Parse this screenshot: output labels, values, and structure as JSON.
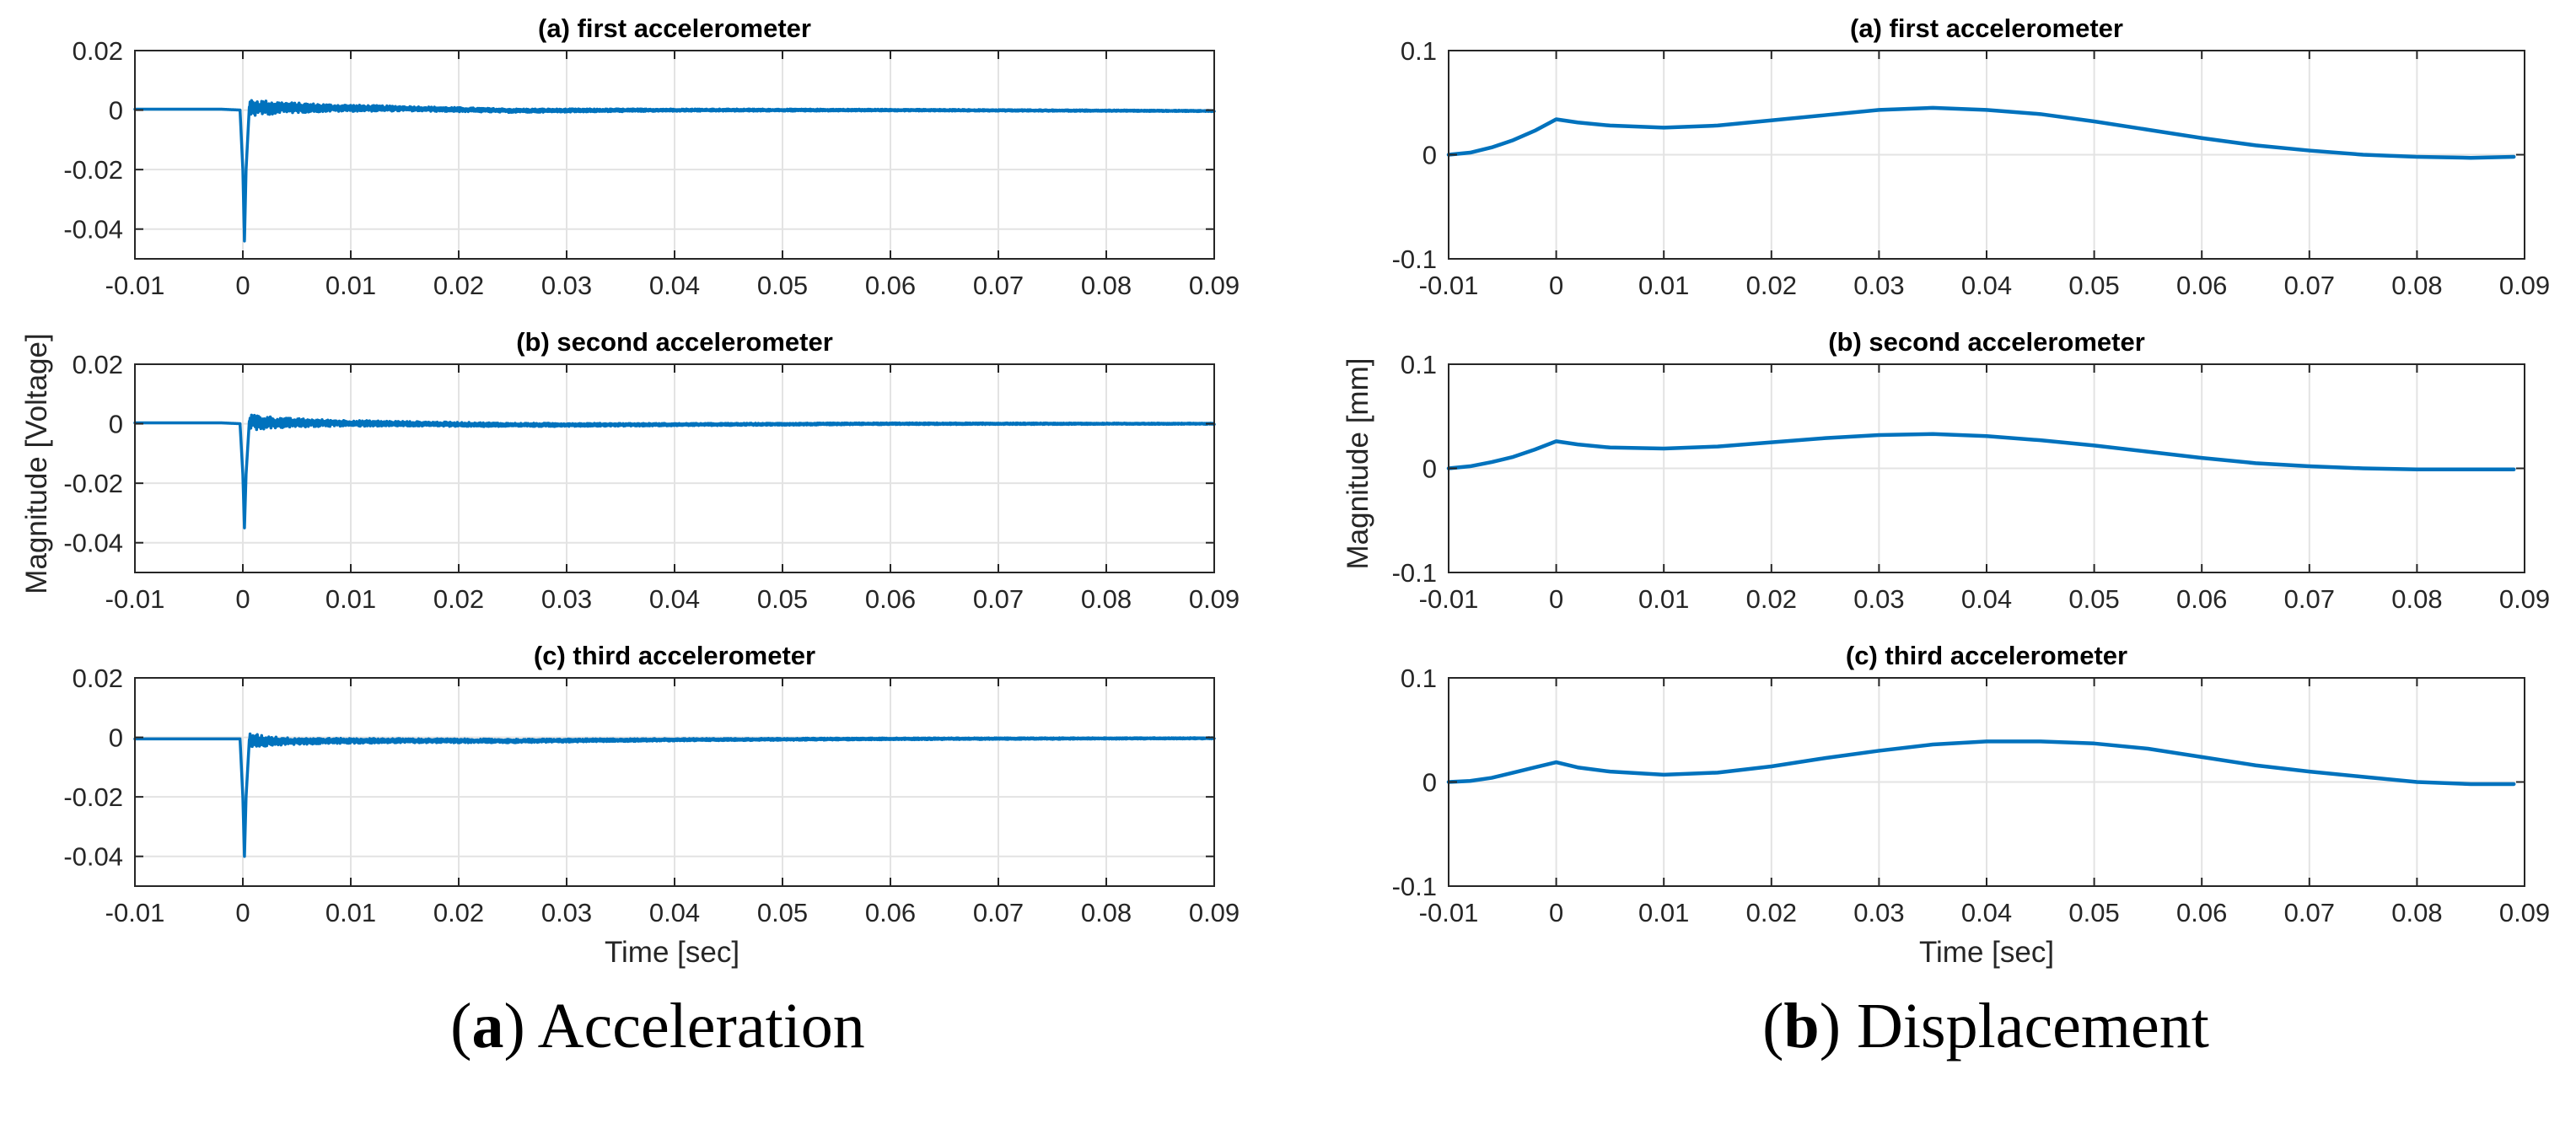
{
  "chart_data": [
    {
      "type": "line",
      "panel": "acceleration",
      "title": "(a) first accelerometer",
      "xlabel": "",
      "ylabel": "",
      "xlim": [
        -0.01,
        0.09
      ],
      "ylim": [
        -0.05,
        0.02
      ],
      "xticks": [
        -0.01,
        0,
        0.01,
        0.02,
        0.03,
        0.04,
        0.05,
        0.06,
        0.07,
        0.08,
        0.09
      ],
      "xtick_labels": [
        "-0.01",
        "0",
        "0.01",
        "0.02",
        "0.03",
        "0.04",
        "0.05",
        "0.06",
        "0.07",
        "0.08",
        "0.09"
      ],
      "yticks": [
        0.02,
        0,
        -0.02,
        -0.04
      ],
      "ytick_labels": [
        "0.02",
        "0",
        "-0.02",
        "-0.04"
      ],
      "grid": true,
      "series": [
        {
          "name": "first accelerometer",
          "color": "#0072BD",
          "x": [
            -0.01,
            -0.002,
            -0.0002,
            0.0,
            0.00015,
            0.0003,
            0.0006,
            0.001,
            0.002,
            0.004,
            0.008,
            0.015,
            0.025,
            0.04,
            0.06,
            0.09
          ],
          "y": [
            0.0003,
            0.0003,
            0.0,
            -0.02,
            -0.044,
            -0.02,
            0.001,
            0.0008,
            0.0008,
            0.0008,
            0.0007,
            0.0005,
            -0.0002,
            0.0,
            0.0,
            -0.0003
          ],
          "noise_amplitude": [
            0,
            0,
            0,
            0,
            0,
            0,
            0.0025,
            0.0028,
            0.0024,
            0.0018,
            0.0012,
            0.0008,
            0.0006,
            0.0004,
            0.0003,
            0.0002
          ]
        }
      ]
    },
    {
      "type": "line",
      "panel": "acceleration",
      "title": "(b) second accelerometer",
      "xlabel": "",
      "ylabel": "Magnitude [Voltage]",
      "xlim": [
        -0.01,
        0.09
      ],
      "ylim": [
        -0.05,
        0.02
      ],
      "xticks": [
        -0.01,
        0,
        0.01,
        0.02,
        0.03,
        0.04,
        0.05,
        0.06,
        0.07,
        0.08,
        0.09
      ],
      "xtick_labels": [
        "-0.01",
        "0",
        "0.01",
        "0.02",
        "0.03",
        "0.04",
        "0.05",
        "0.06",
        "0.07",
        "0.08",
        "0.09"
      ],
      "yticks": [
        0.02,
        0,
        -0.02,
        -0.04
      ],
      "ytick_labels": [
        "0.02",
        "0",
        "-0.02",
        "-0.04"
      ],
      "grid": true,
      "series": [
        {
          "name": "second accelerometer",
          "color": "#0072BD",
          "x": [
            -0.01,
            -0.002,
            -0.0002,
            0.0,
            0.00015,
            0.0003,
            0.0006,
            0.001,
            0.002,
            0.004,
            0.008,
            0.015,
            0.025,
            0.04,
            0.06,
            0.09
          ],
          "y": [
            0.0003,
            0.0003,
            0.0,
            -0.017,
            -0.035,
            -0.017,
            0.0008,
            0.0005,
            0.0004,
            0.0003,
            0.0002,
            0.0,
            -0.0004,
            -0.0003,
            0.0,
            0.0
          ],
          "noise_amplitude": [
            0,
            0,
            0,
            0,
            0,
            0,
            0.0025,
            0.0026,
            0.0022,
            0.0016,
            0.0011,
            0.0008,
            0.0006,
            0.0004,
            0.0003,
            0.0002
          ]
        }
      ]
    },
    {
      "type": "line",
      "panel": "acceleration",
      "title": "(c) third accelerometer",
      "xlabel": "Time [sec]",
      "ylabel": "",
      "xlim": [
        -0.01,
        0.09
      ],
      "ylim": [
        -0.05,
        0.02
      ],
      "xticks": [
        -0.01,
        0,
        0.01,
        0.02,
        0.03,
        0.04,
        0.05,
        0.06,
        0.07,
        0.08,
        0.09
      ],
      "xtick_labels": [
        "-0.01",
        "0",
        "0.01",
        "0.02",
        "0.03",
        "0.04",
        "0.05",
        "0.06",
        "0.07",
        "0.08",
        "0.09"
      ],
      "yticks": [
        0.02,
        0,
        -0.02,
        -0.04
      ],
      "ytick_labels": [
        "0.02",
        "0",
        "-0.02",
        "-0.04"
      ],
      "grid": true,
      "series": [
        {
          "name": "third accelerometer",
          "color": "#0072BD",
          "x": [
            -0.01,
            -0.002,
            -0.0002,
            0.0,
            0.00015,
            0.0003,
            0.0006,
            0.001,
            0.002,
            0.004,
            0.008,
            0.015,
            0.025,
            0.04,
            0.06,
            0.09
          ],
          "y": [
            -0.0005,
            -0.0005,
            -0.0005,
            -0.02,
            -0.04,
            -0.02,
            -0.0008,
            -0.001,
            -0.0012,
            -0.0013,
            -0.0012,
            -0.0011,
            -0.0012,
            -0.0008,
            -0.0005,
            -0.0003
          ],
          "noise_amplitude": [
            0,
            0,
            0,
            0,
            0,
            0,
            0.0022,
            0.0022,
            0.0018,
            0.0012,
            0.0009,
            0.0007,
            0.0006,
            0.0004,
            0.0003,
            0.0002
          ]
        }
      ]
    },
    {
      "type": "line",
      "panel": "displacement",
      "title": "(a) first accelerometer",
      "xlabel": "",
      "ylabel": "",
      "xlim": [
        -0.01,
        0.09
      ],
      "ylim": [
        -0.1,
        0.1
      ],
      "xticks": [
        -0.01,
        0,
        0.01,
        0.02,
        0.03,
        0.04,
        0.05,
        0.06,
        0.07,
        0.08,
        0.09
      ],
      "xtick_labels": [
        "-0.01",
        "0",
        "0.01",
        "0.02",
        "0.03",
        "0.04",
        "0.05",
        "0.06",
        "0.07",
        "0.08",
        "0.09"
      ],
      "yticks": [
        0.1,
        0,
        -0.1
      ],
      "ytick_labels": [
        "0.1",
        "0",
        "-0.1"
      ],
      "grid": true,
      "series": [
        {
          "name": "first accelerometer",
          "color": "#0072BD",
          "x": [
            -0.01,
            -0.008,
            -0.006,
            -0.004,
            -0.002,
            0.0,
            0.002,
            0.005,
            0.01,
            0.015,
            0.02,
            0.025,
            0.03,
            0.035,
            0.04,
            0.045,
            0.05,
            0.055,
            0.06,
            0.065,
            0.07,
            0.075,
            0.08,
            0.085,
            0.089
          ],
          "y": [
            0.0,
            0.002,
            0.007,
            0.014,
            0.023,
            0.034,
            0.031,
            0.028,
            0.026,
            0.028,
            0.033,
            0.038,
            0.043,
            0.045,
            0.043,
            0.039,
            0.032,
            0.024,
            0.016,
            0.009,
            0.004,
            0.0,
            -0.002,
            -0.003,
            -0.002
          ]
        }
      ]
    },
    {
      "type": "line",
      "panel": "displacement",
      "title": "(b) second accelerometer",
      "xlabel": "",
      "ylabel": "Magnitude [mm]",
      "xlim": [
        -0.01,
        0.09
      ],
      "ylim": [
        -0.1,
        0.1
      ],
      "xticks": [
        -0.01,
        0,
        0.01,
        0.02,
        0.03,
        0.04,
        0.05,
        0.06,
        0.07,
        0.08,
        0.09
      ],
      "xtick_labels": [
        "-0.01",
        "0",
        "0.01",
        "0.02",
        "0.03",
        "0.04",
        "0.05",
        "0.06",
        "0.07",
        "0.08",
        "0.09"
      ],
      "yticks": [
        0.1,
        0,
        -0.1
      ],
      "ytick_labels": [
        "0.1",
        "0",
        "-0.1"
      ],
      "grid": true,
      "series": [
        {
          "name": "second accelerometer",
          "color": "#0072BD",
          "x": [
            -0.01,
            -0.008,
            -0.006,
            -0.004,
            -0.002,
            0.0,
            0.002,
            0.005,
            0.01,
            0.015,
            0.02,
            0.025,
            0.03,
            0.035,
            0.04,
            0.045,
            0.05,
            0.055,
            0.06,
            0.065,
            0.07,
            0.075,
            0.08,
            0.085,
            0.089
          ],
          "y": [
            0.0,
            0.002,
            0.006,
            0.011,
            0.018,
            0.026,
            0.023,
            0.02,
            0.019,
            0.021,
            0.025,
            0.029,
            0.032,
            0.033,
            0.031,
            0.027,
            0.022,
            0.016,
            0.01,
            0.005,
            0.002,
            0.0,
            -0.001,
            -0.001,
            -0.001
          ]
        }
      ]
    },
    {
      "type": "line",
      "panel": "displacement",
      "title": "(c) third accelerometer",
      "xlabel": "Time [sec]",
      "ylabel": "",
      "xlim": [
        -0.01,
        0.09
      ],
      "ylim": [
        -0.1,
        0.1
      ],
      "xticks": [
        -0.01,
        0,
        0.01,
        0.02,
        0.03,
        0.04,
        0.05,
        0.06,
        0.07,
        0.08,
        0.09
      ],
      "xtick_labels": [
        "-0.01",
        "0",
        "0.01",
        "0.02",
        "0.03",
        "0.04",
        "0.05",
        "0.06",
        "0.07",
        "0.08",
        "0.09"
      ],
      "yticks": [
        0.1,
        0,
        -0.1
      ],
      "ytick_labels": [
        "0.1",
        "0",
        "-0.1"
      ],
      "grid": true,
      "series": [
        {
          "name": "third accelerometer",
          "color": "#0072BD",
          "x": [
            -0.01,
            -0.008,
            -0.006,
            -0.004,
            -0.002,
            0.0,
            0.002,
            0.005,
            0.01,
            0.015,
            0.02,
            0.025,
            0.03,
            0.035,
            0.04,
            0.045,
            0.05,
            0.055,
            0.06,
            0.065,
            0.07,
            0.075,
            0.08,
            0.085,
            0.089
          ],
          "y": [
            0.0,
            0.001,
            0.004,
            0.009,
            0.014,
            0.019,
            0.014,
            0.01,
            0.007,
            0.009,
            0.015,
            0.023,
            0.03,
            0.036,
            0.039,
            0.039,
            0.037,
            0.032,
            0.024,
            0.016,
            0.01,
            0.005,
            0.0,
            -0.002,
            -0.002
          ]
        }
      ]
    }
  ],
  "captions": {
    "left": {
      "label": "a",
      "text": "Acceleration"
    },
    "right": {
      "label": "b",
      "text": "Displacement"
    }
  }
}
